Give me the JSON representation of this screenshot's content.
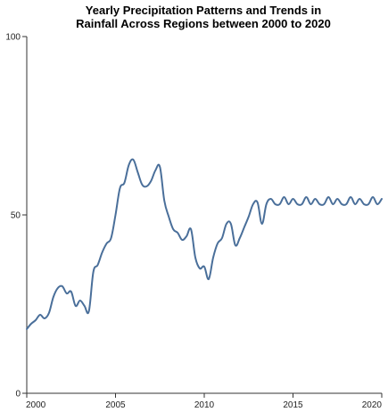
{
  "chart_data": {
    "type": "line",
    "title_lines": [
      "Yearly Precipitation Patterns and Trends in",
      "Rainfall Across Regions between 2000 to 2020"
    ],
    "xlabel": "",
    "ylabel": "",
    "xlim": [
      2000,
      2020
    ],
    "ylim": [
      0,
      100
    ],
    "x_ticks": [
      2000,
      2005,
      2010,
      2015,
      2020
    ],
    "y_ticks": [
      0,
      50,
      100
    ],
    "grid": false,
    "line_color": "#4a6f9a",
    "series": [
      {
        "x": [
          2000.0,
          2000.25,
          2000.5,
          2000.75,
          2001.0,
          2001.25,
          2001.5,
          2001.75,
          2002.0,
          2002.25,
          2002.5,
          2002.75,
          2003.0,
          2003.25,
          2003.5,
          2003.75,
          2004.0,
          2004.25,
          2004.5,
          2004.75,
          2005.0,
          2005.25,
          2005.5,
          2005.75,
          2006.0,
          2006.25,
          2006.5,
          2006.75,
          2007.0,
          2007.25,
          2007.5,
          2007.75,
          2008.0,
          2008.25,
          2008.5,
          2008.75,
          2009.0,
          2009.25,
          2009.5,
          2009.75,
          2010.0,
          2010.25,
          2010.5,
          2010.75,
          2011.0,
          2011.25,
          2011.5,
          2011.75,
          2012.0,
          2012.25,
          2012.5,
          2012.75,
          2013.0,
          2013.25,
          2013.5,
          2013.75,
          2014.0,
          2014.25,
          2014.5,
          2014.75,
          2015.0,
          2015.25,
          2015.5,
          2015.75,
          2016.0,
          2016.25,
          2016.5,
          2016.75,
          2017.0,
          2017.25,
          2017.5,
          2017.75,
          2018.0,
          2018.25,
          2018.5,
          2018.75,
          2019.0,
          2019.25,
          2019.5,
          2019.75,
          2020.0
        ],
        "values": [
          18.0,
          19.5,
          20.5,
          22.0,
          21.0,
          22.5,
          27.0,
          29.5,
          30.0,
          28.0,
          28.5,
          24.5,
          26.0,
          24.5,
          23.0,
          34.0,
          36.0,
          39.5,
          42.0,
          43.5,
          50.0,
          57.5,
          59.0,
          64.0,
          65.5,
          62.0,
          58.5,
          58.0,
          59.5,
          62.5,
          63.5,
          54.0,
          49.5,
          46.0,
          45.0,
          43.0,
          44.0,
          46.0,
          38.0,
          35.0,
          35.5,
          32.0,
          38.0,
          42.0,
          43.5,
          47.5,
          47.5,
          41.5,
          43.5,
          46.5,
          49.5,
          53.0,
          53.5,
          47.5,
          53.0,
          54.5,
          53.0,
          53.0,
          55.0,
          53.0,
          54.5,
          53.0,
          53.0,
          55.0,
          53.0,
          54.5,
          53.0,
          53.0,
          55.0,
          53.0,
          54.5,
          53.0,
          53.0,
          55.0,
          53.0,
          54.5,
          53.0,
          53.0,
          55.0,
          53.0,
          54.5
        ]
      }
    ]
  }
}
